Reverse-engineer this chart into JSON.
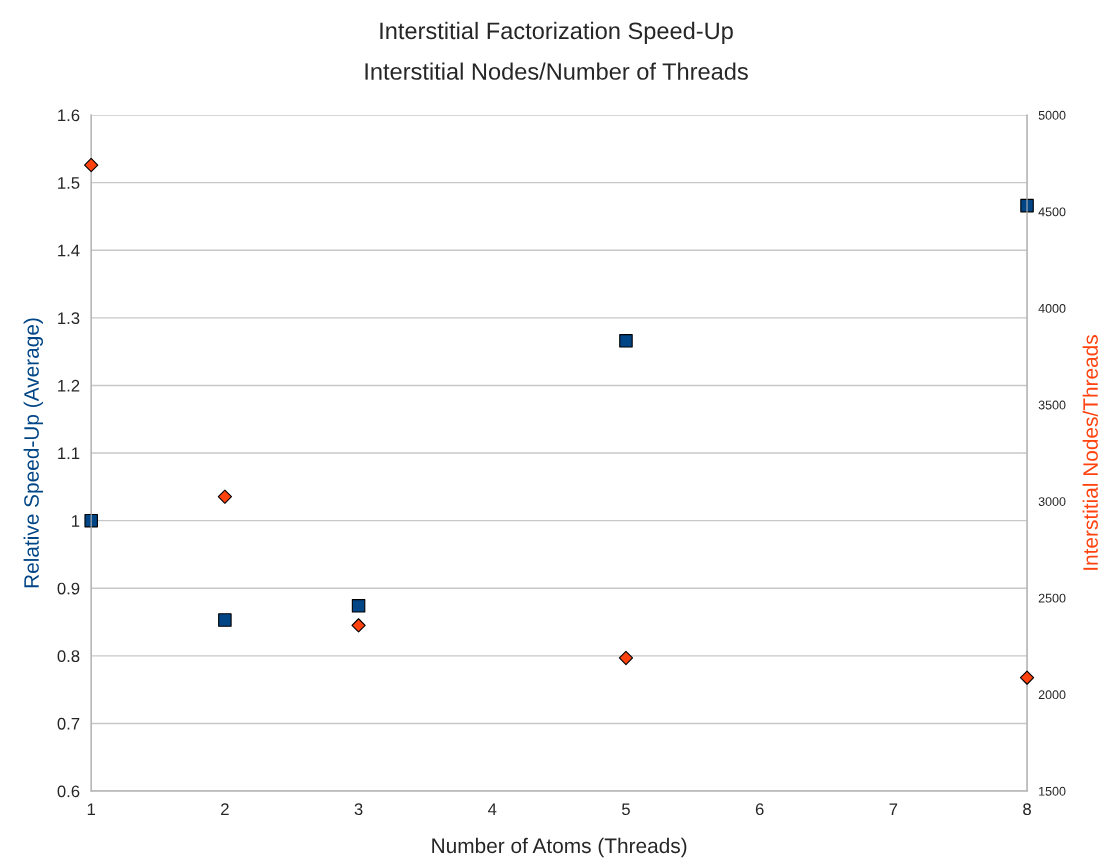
{
  "chart_data": {
    "type": "scatter",
    "title": "Interstitial Factorization Speed-Up",
    "subtitle": "Interstitial Nodes/Number of Threads",
    "xlabel": "Number of Atoms (Threads)",
    "ylabel": "Relative Speed-Up (Average)",
    "y2label": "Interstitial Nodes/Threads",
    "x": [
      1,
      2,
      3,
      5,
      8
    ],
    "series": [
      {
        "color": "#004586",
        "marker": "square",
        "values": [
          1.0,
          0.853,
          0.874,
          1.266,
          1.466
        ]
      },
      {
        "color": "#ff420e",
        "marker": "diamond",
        "axis": "y2",
        "values": [
          4741,
          3024,
          2358,
          2189,
          2087
        ]
      }
    ],
    "xlim": [
      1,
      8
    ],
    "xticks": [
      1,
      2,
      3,
      4,
      5,
      6,
      7,
      8
    ],
    "ylim": [
      0.6,
      1.6
    ],
    "yticks": [
      0.6,
      0.7,
      0.8,
      0.9,
      1,
      1.1,
      1.2,
      1.3,
      1.4,
      1.5,
      1.6
    ],
    "y2lim": [
      1500,
      5000
    ],
    "y2ticks": [
      1500,
      2000,
      2500,
      3000,
      3500,
      4000,
      4500,
      5000
    ],
    "grid": "y"
  }
}
